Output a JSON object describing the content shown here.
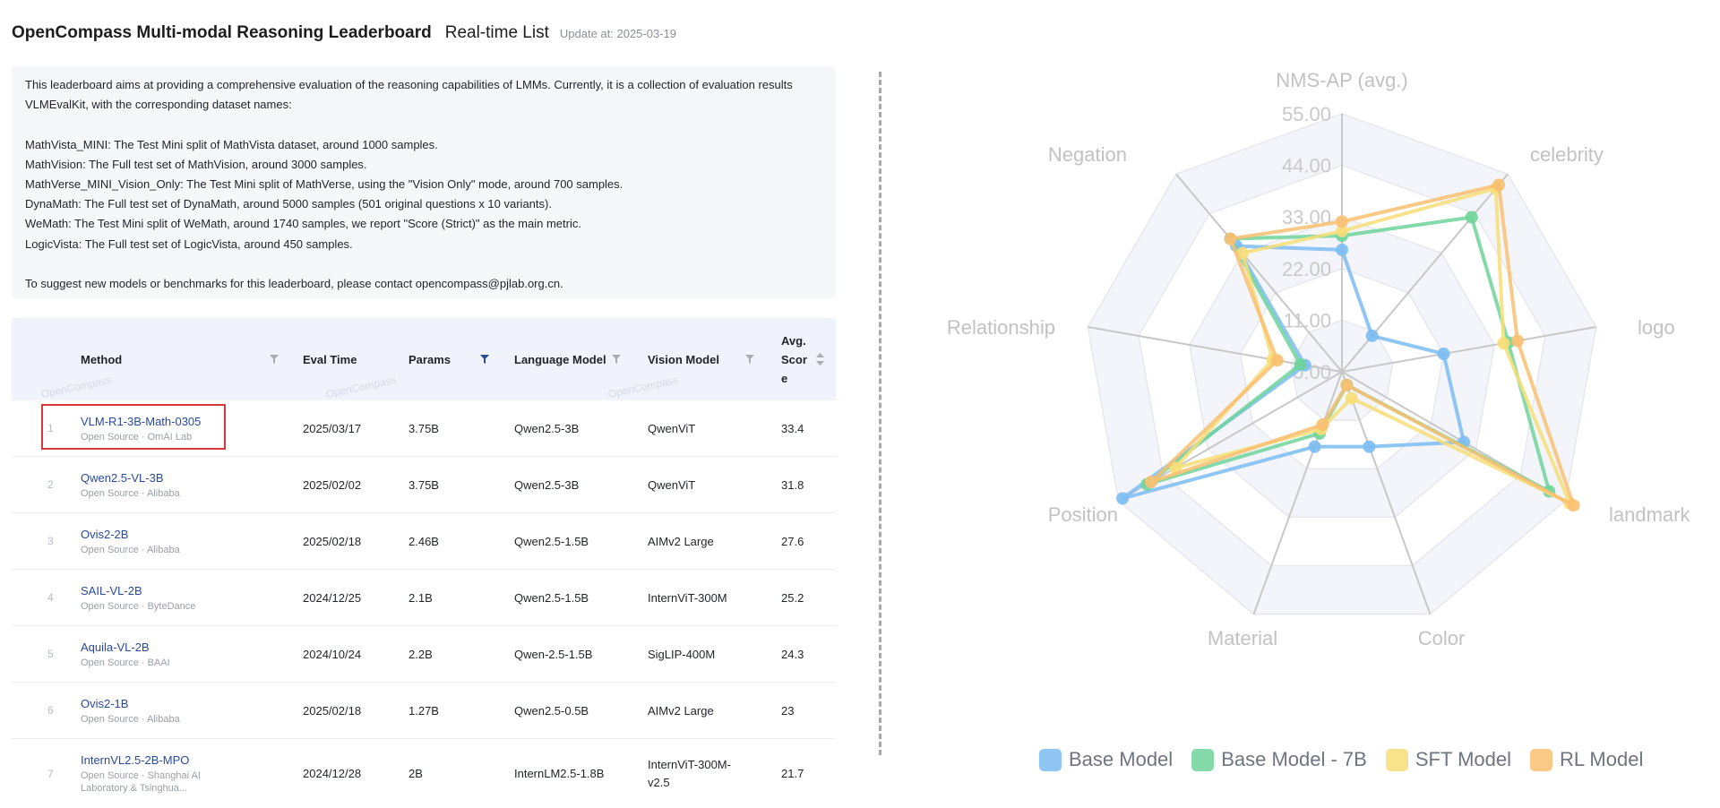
{
  "header": {
    "title": "OpenCompass Multi-modal Reasoning Leaderboard",
    "subtitle": "Real-time List",
    "update": "Update at: 2025-03-19"
  },
  "description": {
    "intro1": "This leaderboard aims at providing a comprehensive evaluation of the reasoning capabilities of LMMs. Currently, it is a collection of evaluation results",
    "intro2": "VLMEvalKit, with the corresponding dataset names:",
    "d1": "MathVista_MINI: The Test Mini split of MathVista dataset, around 1000 samples.",
    "d2": "MathVision: The Full test set of MathVision, around 3000 samples.",
    "d3": "MathVerse_MINI_Vision_Only: The Test Mini split of MathVerse, using the \"Vision Only\" mode, around 700 samples.",
    "d4": "DynaMath: The Full test set of DynaMath, around 5000 samples (501 original questions x 10 variants).",
    "d5": "WeMath: The Test Mini split of WeMath, around 1740 samples, we report \"Score (Strict)\" as the main metric.",
    "d6": "LogicVista: The Full test set of LogicVista, around 450 samples.",
    "contact": "To suggest new models or benchmarks for this leaderboard, please contact opencompass@pjlab.org.cn."
  },
  "table": {
    "headers": {
      "method": "Method",
      "eval_time": "Eval Time",
      "params": "Params",
      "language_model": "Language Model",
      "vision_model": "Vision Model",
      "avg_line1": "Avg.",
      "avg_line2": "Scor",
      "avg_line3": "e"
    },
    "watermark": "OpenCompass",
    "rows": [
      {
        "rank": "1",
        "name": "VLM-R1-3B-Math-0305",
        "source": "Open Source · OmAI Lab",
        "eval_time": "2025/03/17",
        "params": "3.75B",
        "lm": "Qwen2.5-3B",
        "vm": "QwenViT",
        "score": "33.4"
      },
      {
        "rank": "2",
        "name": "Qwen2.5-VL-3B",
        "source": "Open Source · Alibaba",
        "eval_time": "2025/02/02",
        "params": "3.75B",
        "lm": "Qwen2.5-3B",
        "vm": "QwenViT",
        "score": "31.8"
      },
      {
        "rank": "3",
        "name": "Ovis2-2B",
        "source": "Open Source · Alibaba",
        "eval_time": "2025/02/18",
        "params": "2.46B",
        "lm": "Qwen2.5-1.5B",
        "vm": "AIMv2 Large",
        "score": "27.6"
      },
      {
        "rank": "4",
        "name": "SAIL-VL-2B",
        "source": "Open Source · ByteDance",
        "eval_time": "2024/12/25",
        "params": "2.1B",
        "lm": "Qwen2.5-1.5B",
        "vm": "InternViT-300M",
        "score": "25.2"
      },
      {
        "rank": "5",
        "name": "Aquila-VL-2B",
        "source": "Open Source · BAAI",
        "eval_time": "2024/10/24",
        "params": "2.2B",
        "lm": "Qwen-2.5-1.5B",
        "vm": "SigLIP-400M",
        "score": "24.3"
      },
      {
        "rank": "6",
        "name": "Ovis2-1B",
        "source": "Open Source · Alibaba",
        "eval_time": "2025/02/18",
        "params": "1.27B",
        "lm": "Qwen2.5-0.5B",
        "vm": "AIMv2 Large",
        "score": "23"
      },
      {
        "rank": "7",
        "name": "InternVL2.5-2B-MPO",
        "source": "Open Source · Shanghai AI",
        "source2": "Laboratory & Tsinghua...",
        "eval_time": "2024/12/28",
        "params": "2B",
        "lm": "InternLM2.5-1.8B",
        "vm": "InternViT-300M-",
        "vm2": "v2.5",
        "score": "21.7"
      }
    ]
  },
  "chart_data": {
    "type": "radar",
    "title": "NMS-AP (avg.)",
    "axes": [
      "NMS-AP (avg.)",
      "celebrity",
      "logo",
      "landmark",
      "Color",
      "Material",
      "Position",
      "Relationship",
      "Negation"
    ],
    "ticks": [
      "0.00",
      "11.00",
      "22.00",
      "33.00",
      "44.00",
      "55.00"
    ],
    "range": [
      0,
      55
    ],
    "grid": true,
    "legend_position": "bottom",
    "series": [
      {
        "name": "Base Model",
        "color": "#7cbcf2",
        "values": [
          26,
          10,
          22,
          30,
          17,
          17,
          54,
          8,
          35
        ]
      },
      {
        "name": "Base Model - 7B",
        "color": "#6fd49a",
        "values": [
          29,
          43,
          36,
          51,
          3,
          14,
          48,
          9,
          37
        ]
      },
      {
        "name": "SFT Model",
        "color": "#f7de78",
        "values": [
          30,
          51,
          35,
          56,
          6,
          13,
          41,
          15,
          33
        ]
      },
      {
        "name": "RL Model",
        "color": "#f9c071",
        "values": [
          32,
          52,
          38,
          57,
          3,
          12,
          47,
          14,
          37
        ]
      }
    ]
  }
}
